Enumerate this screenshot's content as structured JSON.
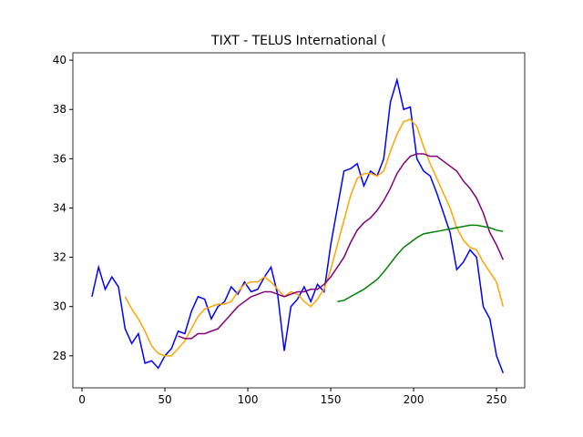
{
  "chart_data": {
    "type": "line",
    "title": "TIXT - TELUS International (",
    "x": [
      6,
      10,
      14,
      18,
      22,
      26,
      30,
      34,
      38,
      42,
      46,
      50,
      54,
      58,
      62,
      66,
      70,
      74,
      78,
      82,
      86,
      90,
      94,
      98,
      102,
      106,
      110,
      114,
      118,
      122,
      126,
      130,
      134,
      138,
      142,
      146,
      150,
      154,
      158,
      162,
      166,
      170,
      174,
      178,
      182,
      186,
      190,
      194,
      198,
      202,
      206,
      210,
      214,
      218,
      222,
      226,
      230,
      234,
      238,
      242,
      246,
      250,
      254
    ],
    "series": [
      {
        "color": "#0000ff",
        "values": [
          30.4,
          31.6,
          30.7,
          31.2,
          30.8,
          29.1,
          28.5,
          28.9,
          27.7,
          27.8,
          27.5,
          28.0,
          28.3,
          29.0,
          28.9,
          29.8,
          30.4,
          30.3,
          29.5,
          30.0,
          30.2,
          30.8,
          30.5,
          31.0,
          30.6,
          30.7,
          31.2,
          31.6,
          30.5,
          28.2,
          30.0,
          30.3,
          30.8,
          30.2,
          30.9,
          30.6,
          32.5,
          34.0,
          35.5,
          35.6,
          35.8,
          34.9,
          35.5,
          35.3,
          36.0,
          38.3,
          39.2,
          38.0,
          38.1,
          36.0,
          35.5,
          35.3,
          34.6,
          33.8,
          33.0,
          31.5,
          31.8,
          32.3,
          32.0,
          30.0,
          29.5,
          28.0,
          27.3
        ]
      },
      {
        "color": "#ffa500",
        "values": [
          null,
          null,
          null,
          null,
          null,
          30.4,
          29.9,
          29.5,
          29.0,
          28.4,
          28.1,
          28.0,
          28.0,
          28.3,
          28.6,
          29.1,
          29.6,
          29.9,
          30.0,
          30.1,
          30.1,
          30.2,
          30.6,
          30.9,
          31.0,
          31.0,
          31.2,
          31.0,
          30.7,
          30.4,
          30.6,
          30.5,
          30.2,
          30.0,
          30.3,
          30.7,
          31.5,
          32.5,
          33.5,
          34.5,
          35.2,
          35.4,
          35.4,
          35.3,
          35.5,
          36.3,
          37.0,
          37.5,
          37.6,
          37.3,
          36.5,
          35.8,
          35.2,
          34.6,
          34.0,
          33.2,
          32.7,
          32.4,
          32.3,
          31.8,
          31.4,
          31.0,
          30.0
        ]
      },
      {
        "color": "#800080",
        "values": [
          null,
          null,
          null,
          null,
          null,
          null,
          null,
          null,
          null,
          null,
          null,
          null,
          null,
          28.8,
          28.7,
          28.7,
          28.9,
          28.9,
          29.0,
          29.1,
          29.4,
          29.7,
          30.0,
          30.2,
          30.4,
          30.5,
          30.6,
          30.6,
          30.5,
          30.4,
          30.5,
          30.6,
          30.6,
          30.7,
          30.7,
          30.9,
          31.2,
          31.6,
          32.0,
          32.6,
          33.1,
          33.4,
          33.6,
          33.9,
          34.3,
          34.8,
          35.4,
          35.8,
          36.1,
          36.2,
          36.2,
          36.1,
          36.1,
          35.9,
          35.7,
          35.5,
          35.1,
          34.8,
          34.4,
          33.8,
          33.0,
          32.5,
          31.9
        ]
      },
      {
        "color": "#008000",
        "values": [
          null,
          null,
          null,
          null,
          null,
          null,
          null,
          null,
          null,
          null,
          null,
          null,
          null,
          null,
          null,
          null,
          null,
          null,
          null,
          null,
          null,
          null,
          null,
          null,
          null,
          null,
          null,
          null,
          null,
          null,
          null,
          null,
          null,
          null,
          null,
          null,
          null,
          30.2,
          30.25,
          30.4,
          30.55,
          30.7,
          30.9,
          31.1,
          31.4,
          31.75,
          32.1,
          32.4,
          32.6,
          32.8,
          32.95,
          33.0,
          33.05,
          33.1,
          33.15,
          33.2,
          33.25,
          33.3,
          33.3,
          33.25,
          33.2,
          33.1,
          33.05
        ]
      }
    ],
    "xlim": [
      -5.5,
      267
    ],
    "ylim": [
      26.7,
      40.3
    ],
    "xticks": [
      0,
      50,
      100,
      150,
      200,
      250
    ],
    "yticks": [
      28,
      30,
      32,
      34,
      36,
      38,
      40
    ]
  }
}
